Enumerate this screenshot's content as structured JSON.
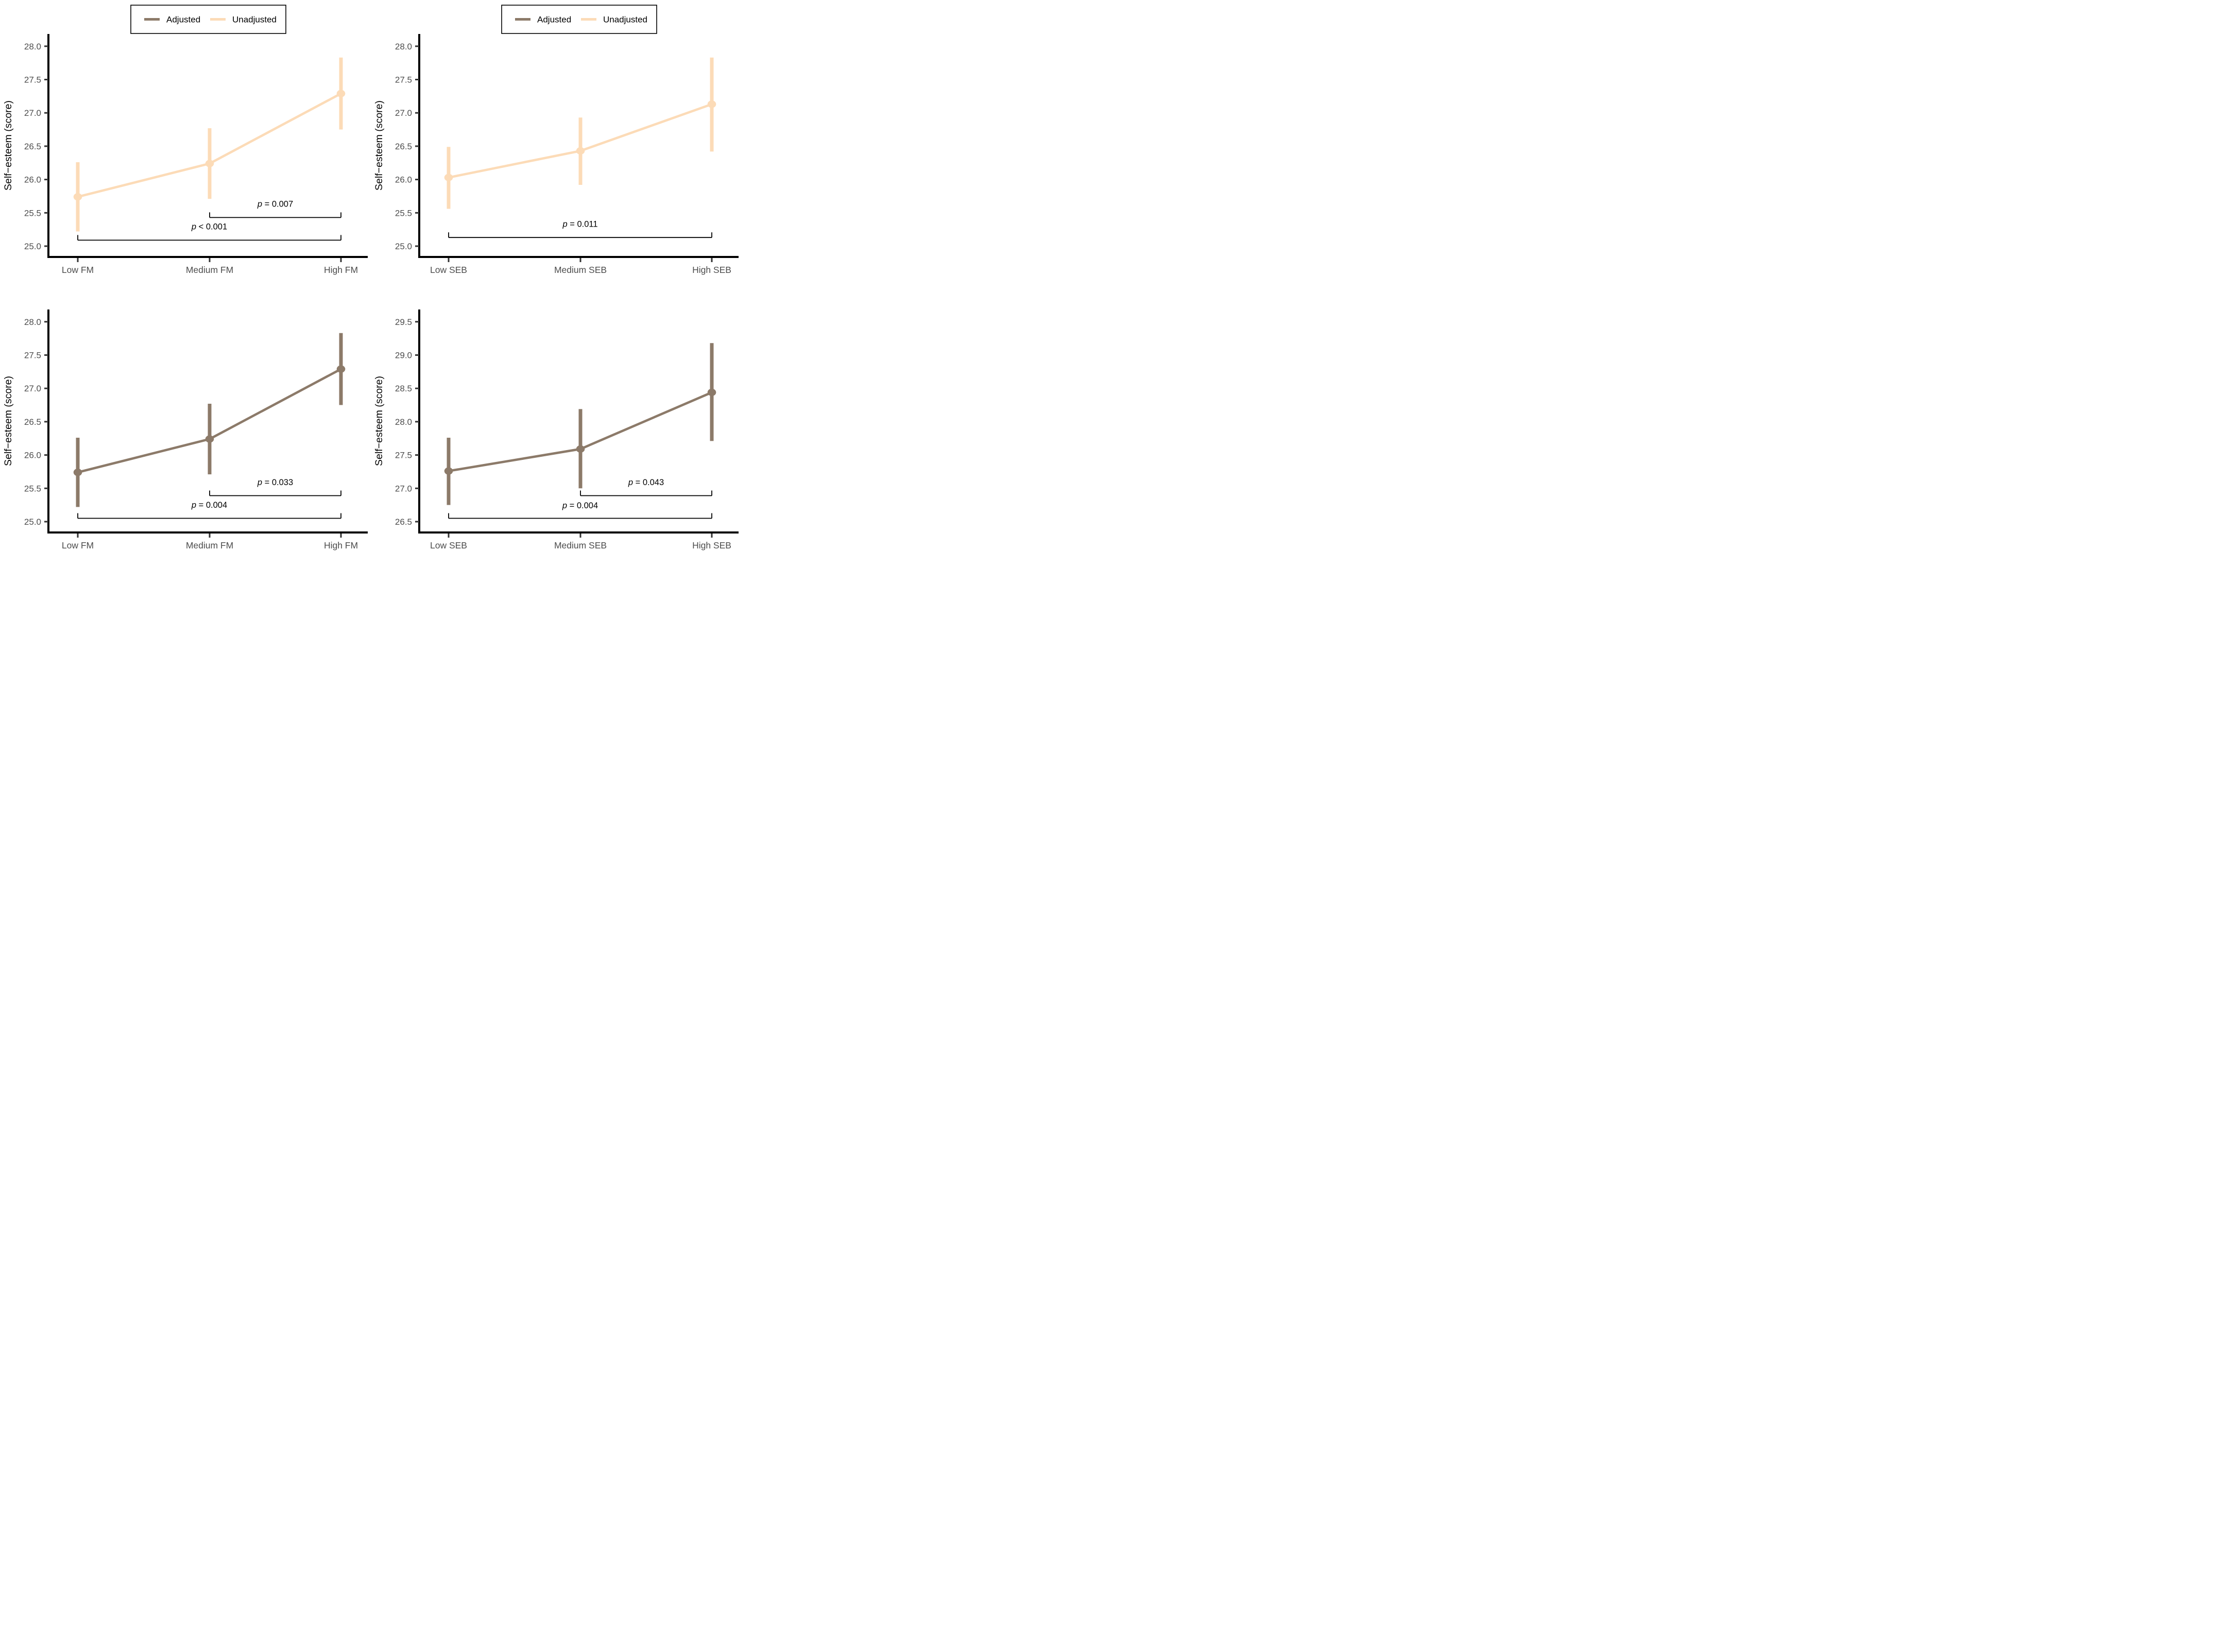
{
  "figure": {
    "ylabel": "Self−esteem (score)",
    "legend": {
      "adjusted_label": "Adjusted",
      "unadjusted_label": "Unadjusted"
    },
    "colors": {
      "adjusted": "#8c7a69",
      "unadjusted": "#fcdbb7",
      "axis": "#000000",
      "tick_mark": "#333333",
      "tick_label": "#4d4d4d",
      "axis_title": "#000000",
      "bracket": "#000000",
      "p_text": "#000000",
      "legend_border": "#000000",
      "background": "#ffffff"
    }
  },
  "chart_data": [
    {
      "id": "unadjusted-fm",
      "type": "line",
      "series_key": "unadjusted",
      "series_label": "Unadjusted",
      "show_legend": true,
      "categories": [
        "Low FM",
        "Medium FM",
        "High FM"
      ],
      "values": [
        25.74,
        26.24,
        27.29
      ],
      "ci_low": [
        25.22,
        25.71,
        26.75
      ],
      "ci_high": [
        26.26,
        26.77,
        27.83
      ],
      "ymin": 25.0,
      "ymax": 28.0,
      "ytick_step": 0.5,
      "ylim": [
        24.84,
        28.1
      ],
      "grid": false,
      "legend_position": "top",
      "brackets": [
        {
          "from": 1,
          "to": 2,
          "label": "p = 0.007",
          "line_y": 25.43,
          "label_y": 25.59
        },
        {
          "from": 0,
          "to": 2,
          "label": "p < 0.001",
          "line_y": 25.09,
          "label_y": 25.25
        }
      ]
    },
    {
      "id": "unadjusted-seb",
      "type": "line",
      "series_key": "unadjusted",
      "series_label": "Unadjusted",
      "show_legend": true,
      "categories": [
        "Low SEB",
        "Medium SEB",
        "High SEB"
      ],
      "values": [
        26.03,
        26.43,
        27.13
      ],
      "ci_low": [
        25.56,
        25.92,
        26.42
      ],
      "ci_high": [
        26.49,
        26.93,
        27.83
      ],
      "ymin": 25.0,
      "ymax": 28.0,
      "ytick_step": 0.5,
      "ylim": [
        24.84,
        28.1
      ],
      "grid": false,
      "legend_position": "top",
      "brackets": [
        {
          "from": 0,
          "to": 2,
          "label": "p = 0.011",
          "line_y": 25.13,
          "label_y": 25.29
        }
      ]
    },
    {
      "id": "adjusted-fm",
      "type": "line",
      "series_key": "adjusted",
      "series_label": "Adjusted",
      "show_legend": false,
      "categories": [
        "Low FM",
        "Medium FM",
        "High FM"
      ],
      "values": [
        25.74,
        26.24,
        27.29
      ],
      "ci_low": [
        25.22,
        25.71,
        26.75
      ],
      "ci_high": [
        26.26,
        26.77,
        27.83
      ],
      "ymin": 25.0,
      "ymax": 28.0,
      "ytick_step": 0.5,
      "ylim": [
        24.84,
        28.1
      ],
      "grid": false,
      "legend_position": "none",
      "brackets": [
        {
          "from": 1,
          "to": 2,
          "label": "p = 0.033",
          "line_y": 25.39,
          "label_y": 25.55
        },
        {
          "from": 0,
          "to": 2,
          "label": "p = 0.004",
          "line_y": 25.05,
          "label_y": 25.21
        }
      ]
    },
    {
      "id": "adjusted-seb",
      "type": "line",
      "series_key": "adjusted",
      "series_label": "Adjusted",
      "show_legend": false,
      "categories": [
        "Low SEB",
        "Medium SEB",
        "High SEB"
      ],
      "values": [
        27.26,
        27.59,
        28.44
      ],
      "ci_low": [
        26.75,
        27.0,
        27.71
      ],
      "ci_high": [
        27.76,
        28.19,
        29.18
      ],
      "ymin": 26.5,
      "ymax": 29.5,
      "ytick_step": 0.5,
      "ylim": [
        26.34,
        29.6
      ],
      "grid": false,
      "legend_position": "none",
      "brackets": [
        {
          "from": 1,
          "to": 2,
          "label": "p = 0.043",
          "line_y": 26.89,
          "label_y": 27.05
        },
        {
          "from": 0,
          "to": 2,
          "label": "p = 0.004",
          "line_y": 26.55,
          "label_y": 26.7
        }
      ]
    }
  ]
}
